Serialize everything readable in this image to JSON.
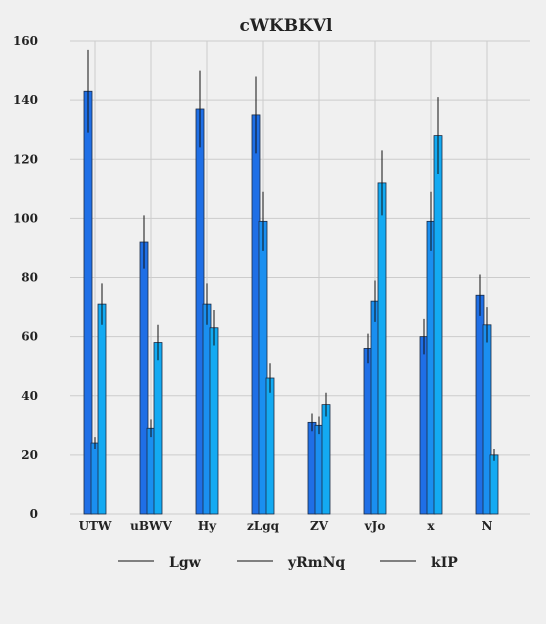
{
  "chart_data": {
    "type": "bar",
    "title": "cWKBKVl",
    "xlabel": "",
    "ylabel": "",
    "ylim": [
      0,
      160
    ],
    "yticks": [
      0,
      20,
      40,
      60,
      80,
      100,
      120,
      140,
      160
    ],
    "grid": true,
    "legend_position": "bottom",
    "categories": [
      "UTW",
      "uBWV",
      "Hy",
      "zLgq",
      "ZV",
      "vJo",
      "x",
      "N"
    ],
    "series": [
      {
        "name": "Lgw",
        "color": "#1f6fe6",
        "values": [
          143,
          92,
          137,
          135,
          31,
          56,
          60,
          74
        ],
        "errors": [
          14,
          9,
          13,
          13,
          3,
          5,
          6,
          7
        ]
      },
      {
        "name": "yRmNq",
        "color": "#1a8ff0",
        "values": [
          24,
          29,
          71,
          99,
          30,
          72,
          99,
          64
        ],
        "errors": [
          2,
          3,
          7,
          10,
          3,
          7,
          10,
          6
        ]
      },
      {
        "name": "kIP",
        "color": "#13aaf2",
        "values": [
          71,
          58,
          63,
          46,
          37,
          112,
          128,
          20
        ],
        "errors": [
          7,
          6,
          6,
          5,
          4,
          11,
          13,
          2
        ]
      }
    ]
  }
}
